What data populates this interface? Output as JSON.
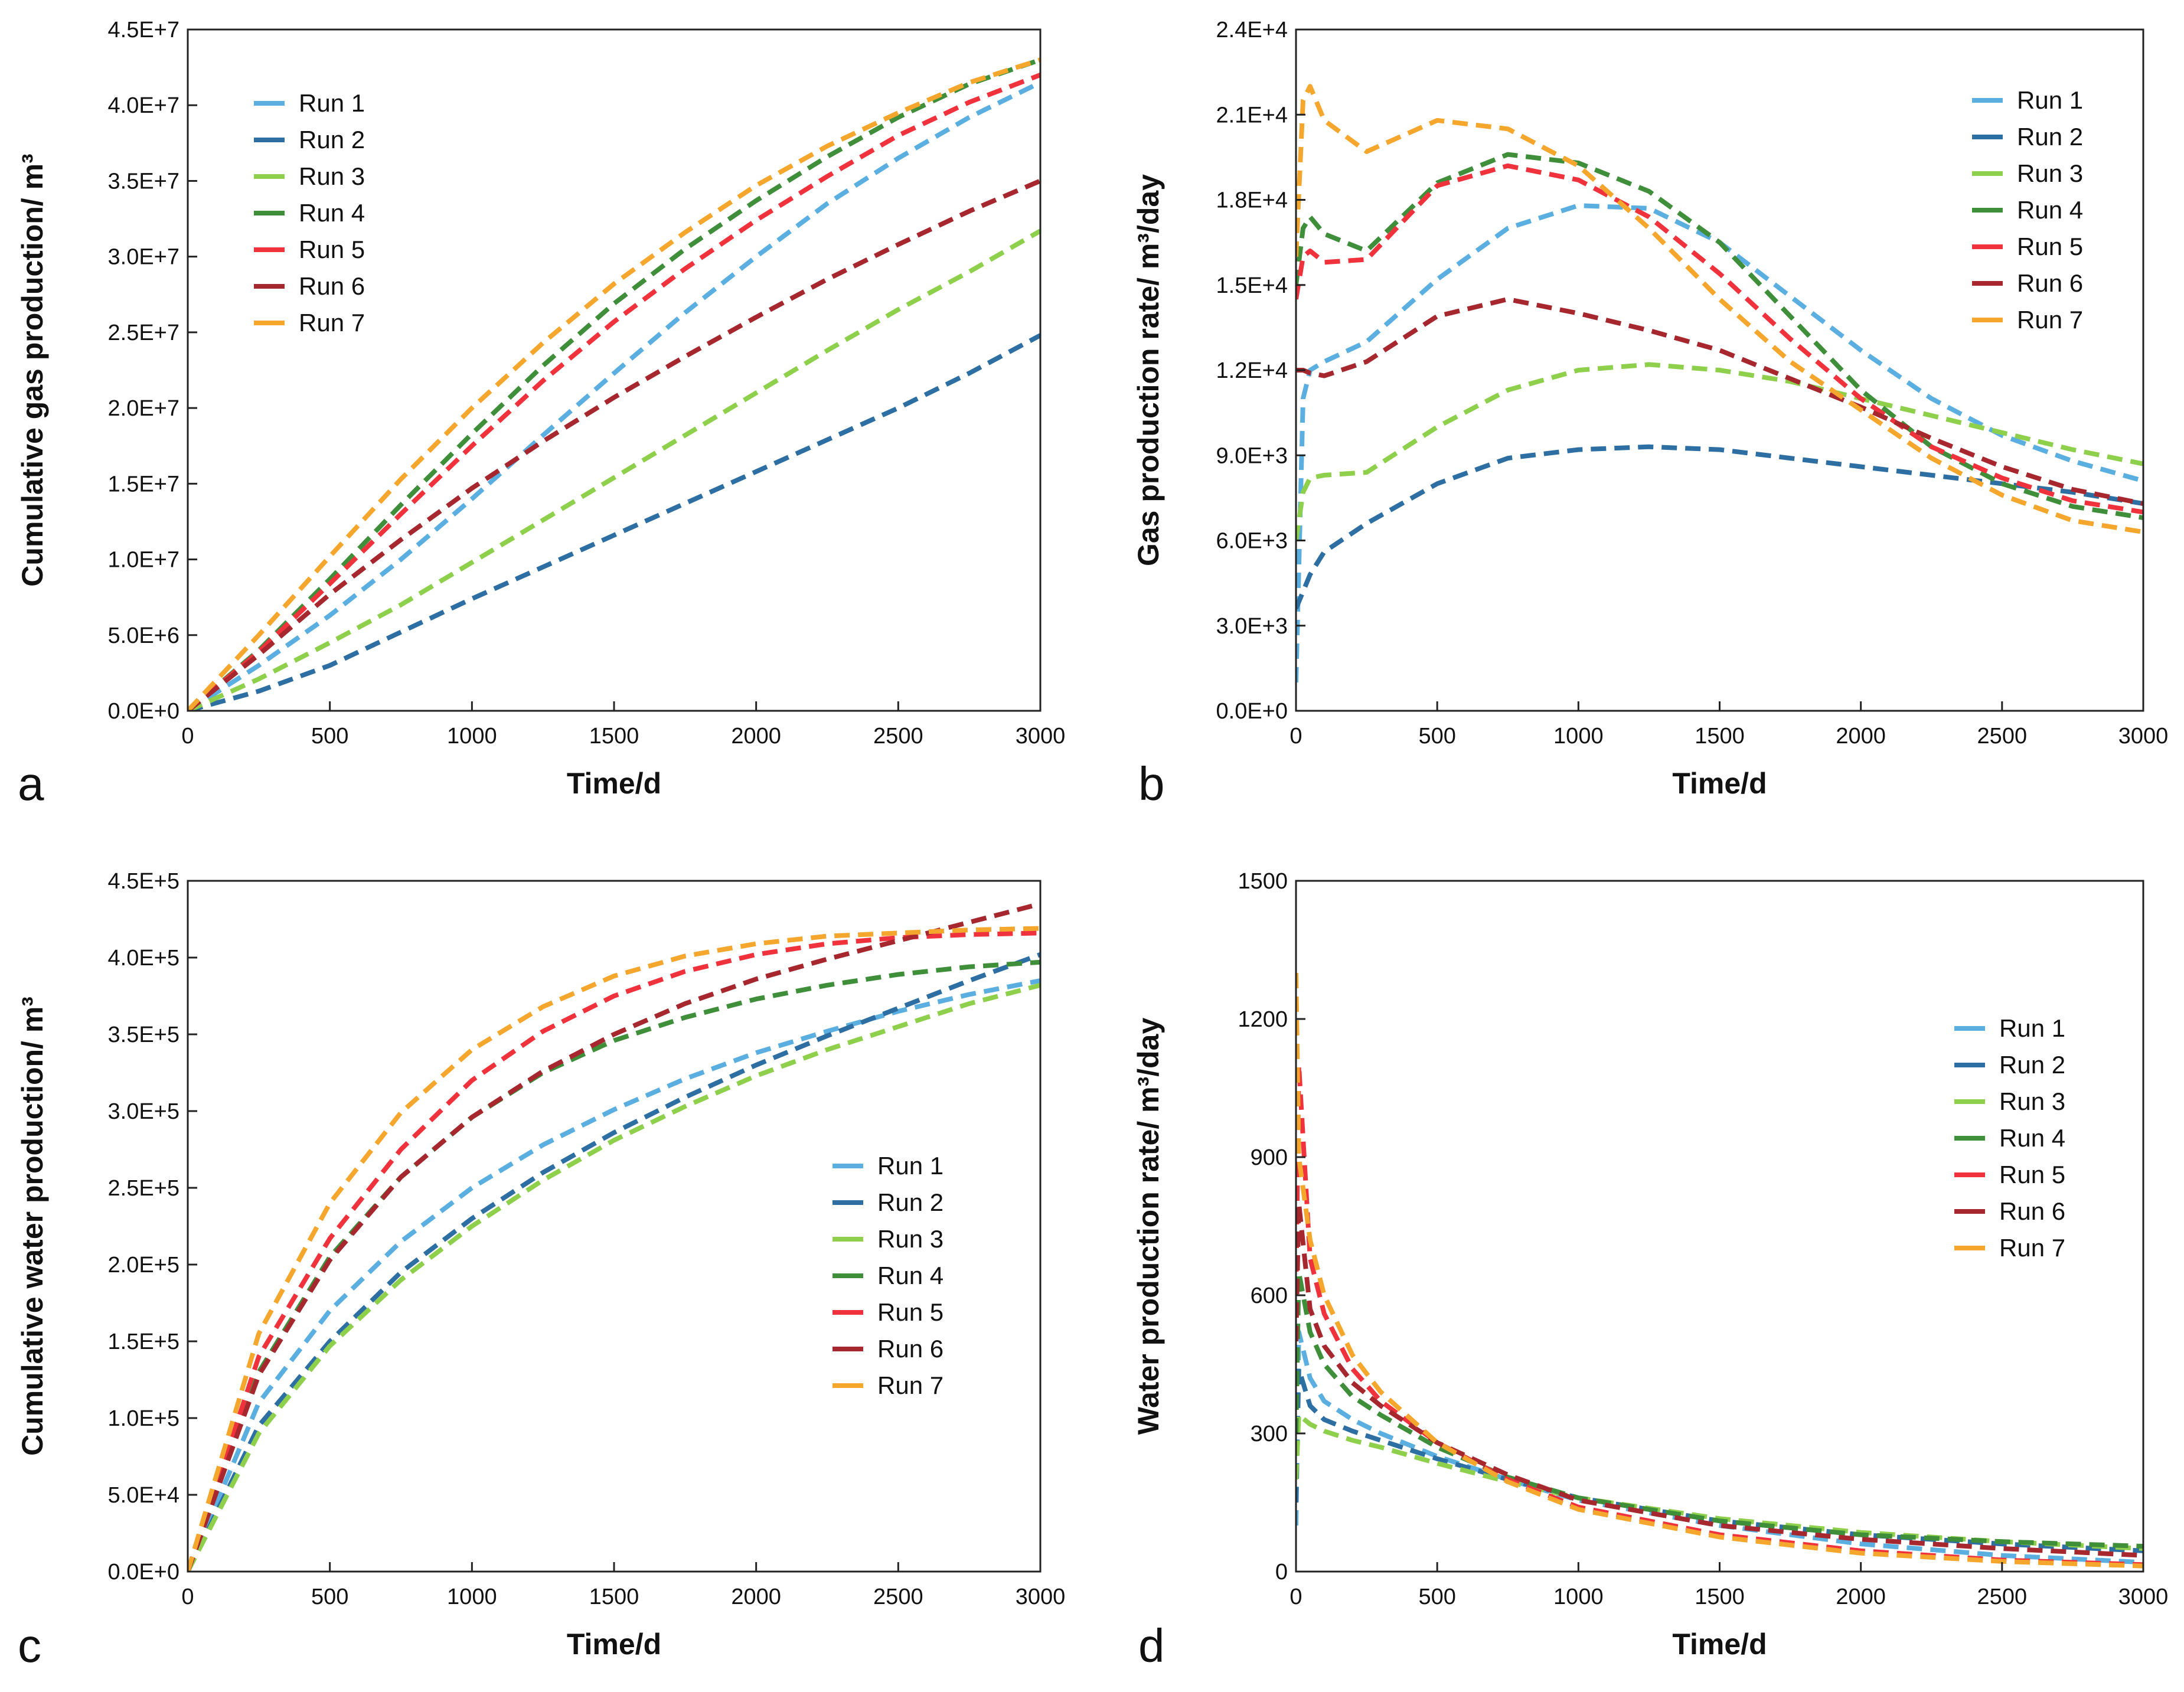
{
  "colors": {
    "Run 1": "#5aafe0",
    "Run 2": "#2e6fa3",
    "Run 3": "#8ed04b",
    "Run 4": "#3e8e3a",
    "Run 5": "#f0323c",
    "Run 6": "#a6272e",
    "Run 7": "#f5a62d"
  },
  "chart_data": [
    {
      "id": "a",
      "panel_letter": "a",
      "type": "line",
      "xlabel": "Time/d",
      "ylabel": "Cumulative gas production/ m³",
      "xlim": [
        0,
        3000
      ],
      "ylim": [
        0,
        45000000
      ],
      "xticks": [
        0,
        500,
        1000,
        1500,
        2000,
        2500,
        3000
      ],
      "xtick_labels": [
        "0",
        "500",
        "1000",
        "1500",
        "2000",
        "2500",
        "3000"
      ],
      "yticks": [
        0,
        5000000,
        10000000,
        15000000,
        20000000,
        25000000,
        30000000,
        35000000,
        40000000,
        45000000
      ],
      "ytick_labels": [
        "0.0E+0",
        "5.0E+6",
        "1.0E+7",
        "1.5E+7",
        "2.0E+7",
        "2.5E+7",
        "3.0E+7",
        "3.5E+7",
        "4.0E+7",
        "4.5E+7"
      ],
      "legend_position": "top-left",
      "x": [
        0,
        250,
        500,
        750,
        1000,
        1250,
        1500,
        1750,
        2000,
        2250,
        2500,
        2750,
        3000
      ],
      "series": [
        {
          "name": "Run 1",
          "values": [
            0,
            3000000,
            6300000,
            10000000,
            14000000,
            18200000,
            22300000,
            26300000,
            30000000,
            33500000,
            36500000,
            39200000,
            41500000
          ]
        },
        {
          "name": "Run 2",
          "values": [
            0,
            1300000,
            3000000,
            5200000,
            7400000,
            9500000,
            11600000,
            13700000,
            15800000,
            17900000,
            20000000,
            22300000,
            24800000
          ]
        },
        {
          "name": "Run 3",
          "values": [
            0,
            2100000,
            4500000,
            7000000,
            9800000,
            12600000,
            15400000,
            18200000,
            21000000,
            23800000,
            26500000,
            29000000,
            31700000
          ]
        },
        {
          "name": "Run 4",
          "values": [
            0,
            4000000,
            8700000,
            13600000,
            18300000,
            22800000,
            26900000,
            30500000,
            33700000,
            36600000,
            39200000,
            41400000,
            43000000
          ]
        },
        {
          "name": "Run 5",
          "values": [
            0,
            3900000,
            8400000,
            13000000,
            17500000,
            21800000,
            25700000,
            29200000,
            32400000,
            35300000,
            38000000,
            40200000,
            42000000
          ]
        },
        {
          "name": "Run 6",
          "values": [
            0,
            3700000,
            7700000,
            11300000,
            14700000,
            17800000,
            20700000,
            23400000,
            26000000,
            28500000,
            30800000,
            33000000,
            35000000
          ]
        },
        {
          "name": "Run 7",
          "values": [
            0,
            5000000,
            10200000,
            15300000,
            20000000,
            24300000,
            28200000,
            31600000,
            34700000,
            37300000,
            39500000,
            41500000,
            43000000
          ]
        }
      ]
    },
    {
      "id": "b",
      "panel_letter": "b",
      "type": "line",
      "xlabel": "Time/d",
      "ylabel": "Gas production rate/ m³/day",
      "xlim": [
        0,
        3000
      ],
      "ylim": [
        0,
        24000
      ],
      "xticks": [
        0,
        500,
        1000,
        1500,
        2000,
        2500,
        3000
      ],
      "xtick_labels": [
        "0",
        "500",
        "1000",
        "1500",
        "2000",
        "2500",
        "3000"
      ],
      "yticks": [
        0,
        3000,
        6000,
        9000,
        12000,
        15000,
        18000,
        21000,
        24000
      ],
      "ytick_labels": [
        "0.0E+0",
        "3.0E+3",
        "6.0E+3",
        "9.0E+3",
        "1.2E+4",
        "1.5E+4",
        "1.8E+4",
        "2.1E+4",
        "2.4E+4"
      ],
      "legend_position": "top-right",
      "x": [
        0,
        25,
        50,
        100,
        250,
        500,
        750,
        1000,
        1250,
        1500,
        1750,
        2000,
        2250,
        2500,
        2750,
        3000
      ],
      "series": [
        {
          "name": "Run 1",
          "values": [
            1000,
            11000,
            12000,
            12300,
            13000,
            15200,
            17000,
            17800,
            17700,
            16500,
            14600,
            12700,
            11000,
            9700,
            8800,
            8100
          ]
        },
        {
          "name": "Run 2",
          "values": [
            3600,
            4200,
            4800,
            5600,
            6600,
            8000,
            8900,
            9200,
            9300,
            9200,
            8900,
            8600,
            8300,
            8000,
            7700,
            7300
          ]
        },
        {
          "name": "Run 3",
          "values": [
            6000,
            7700,
            8200,
            8300,
            8400,
            10000,
            11300,
            12000,
            12200,
            12000,
            11600,
            11000,
            10400,
            9800,
            9200,
            8700
          ]
        },
        {
          "name": "Run 4",
          "values": [
            15000,
            17000,
            17400,
            16800,
            16200,
            18600,
            19600,
            19300,
            18300,
            16500,
            13900,
            11300,
            9300,
            8000,
            7200,
            6800
          ]
        },
        {
          "name": "Run 5",
          "values": [
            14500,
            16000,
            16200,
            15800,
            15900,
            18500,
            19200,
            18700,
            17400,
            15400,
            13100,
            11000,
            9300,
            8200,
            7400,
            7000
          ]
        },
        {
          "name": "Run 6",
          "values": [
            12000,
            12000,
            11900,
            11800,
            12300,
            13900,
            14500,
            14000,
            13400,
            12700,
            11700,
            10700,
            9600,
            8600,
            7800,
            7300
          ]
        },
        {
          "name": "Run 7",
          "values": [
            16000,
            21500,
            22000,
            20800,
            19700,
            20800,
            20500,
            19200,
            17000,
            14500,
            12300,
            10600,
            8900,
            7600,
            6700,
            6300
          ]
        }
      ]
    },
    {
      "id": "c",
      "panel_letter": "c",
      "type": "line",
      "xlabel": "Time/d",
      "ylabel": "Cumulative water production/ m³",
      "xlim": [
        0,
        3000
      ],
      "ylim": [
        0,
        450000
      ],
      "xticks": [
        0,
        500,
        1000,
        1500,
        2000,
        2500,
        3000
      ],
      "xtick_labels": [
        "0",
        "500",
        "1000",
        "1500",
        "2000",
        "2500",
        "3000"
      ],
      "yticks": [
        0,
        50000,
        100000,
        150000,
        200000,
        250000,
        300000,
        350000,
        400000,
        450000
      ],
      "ytick_labels": [
        "0.0E+0",
        "5.0E+4",
        "1.0E+5",
        "1.5E+5",
        "2.0E+5",
        "2.5E+5",
        "3.0E+5",
        "3.5E+5",
        "4.0E+5",
        "4.5E+5"
      ],
      "legend_position": "right",
      "x": [
        0,
        250,
        500,
        750,
        1000,
        1250,
        1500,
        1750,
        2000,
        2250,
        2500,
        2750,
        3000
      ],
      "series": [
        {
          "name": "Run 1",
          "values": [
            0,
            110000,
            170000,
            215000,
            250000,
            278000,
            301000,
            321000,
            338000,
            352000,
            365000,
            376000,
            385000
          ]
        },
        {
          "name": "Run 2",
          "values": [
            0,
            95000,
            150000,
            195000,
            230000,
            260000,
            286000,
            309000,
            330000,
            349000,
            367000,
            385000,
            402000
          ]
        },
        {
          "name": "Run 3",
          "values": [
            0,
            90000,
            147000,
            190000,
            225000,
            255000,
            281000,
            303000,
            323000,
            340000,
            355000,
            370000,
            382000
          ]
        },
        {
          "name": "Run 4",
          "values": [
            0,
            130000,
            205000,
            257000,
            296000,
            325000,
            346000,
            361000,
            373000,
            382000,
            389000,
            394000,
            397000
          ]
        },
        {
          "name": "Run 5",
          "values": [
            0,
            140000,
            217000,
            275000,
            320000,
            352000,
            375000,
            391000,
            402000,
            409000,
            413000,
            415000,
            416000
          ]
        },
        {
          "name": "Run 6",
          "values": [
            0,
            128000,
            203000,
            257000,
            296000,
            326000,
            350000,
            370000,
            386000,
            399000,
            411000,
            423000,
            435000
          ]
        },
        {
          "name": "Run 7",
          "values": [
            0,
            155000,
            240000,
            299000,
            340000,
            368000,
            388000,
            401000,
            409000,
            414000,
            416000,
            418000,
            419000
          ]
        }
      ]
    },
    {
      "id": "d",
      "panel_letter": "d",
      "type": "line",
      "xlabel": "Time/d",
      "ylabel": "Water production rate/ m³/day",
      "xlim": [
        0,
        3000
      ],
      "ylim": [
        0,
        1500
      ],
      "xticks": [
        0,
        500,
        1000,
        1500,
        2000,
        2500,
        3000
      ],
      "xtick_labels": [
        "0",
        "500",
        "1000",
        "1500",
        "2000",
        "2500",
        "3000"
      ],
      "yticks": [
        0,
        300,
        600,
        900,
        1200,
        1500
      ],
      "ytick_labels": [
        "0",
        "300",
        "600",
        "900",
        "1200",
        "1500"
      ],
      "legend_position": "right",
      "x": [
        0,
        10,
        50,
        100,
        200,
        300,
        500,
        750,
        1000,
        1500,
        2000,
        2500,
        3000
      ],
      "series": [
        {
          "name": "Run 1",
          "values": [
            100,
            520,
            420,
            370,
            330,
            300,
            250,
            200,
            155,
            100,
            60,
            35,
            20
          ]
        },
        {
          "name": "Run 2",
          "values": [
            150,
            440,
            360,
            330,
            305,
            285,
            245,
            200,
            160,
            110,
            80,
            60,
            45
          ]
        },
        {
          "name": "Run 3",
          "values": [
            200,
            340,
            320,
            305,
            285,
            270,
            235,
            195,
            160,
            115,
            85,
            65,
            50
          ]
        },
        {
          "name": "Run 4",
          "values": [
            300,
            650,
            520,
            450,
            380,
            340,
            270,
            205,
            160,
            110,
            80,
            65,
            55
          ]
        },
        {
          "name": "Run 5",
          "values": [
            600,
            1100,
            680,
            560,
            440,
            370,
            280,
            200,
            140,
            80,
            45,
            25,
            15
          ]
        },
        {
          "name": "Run 6",
          "values": [
            500,
            800,
            570,
            490,
            410,
            360,
            280,
            210,
            155,
            100,
            70,
            50,
            35
          ]
        },
        {
          "name": "Run 7",
          "values": [
            1300,
            900,
            720,
            600,
            470,
            390,
            280,
            195,
            135,
            75,
            40,
            22,
            12
          ]
        }
      ]
    }
  ]
}
